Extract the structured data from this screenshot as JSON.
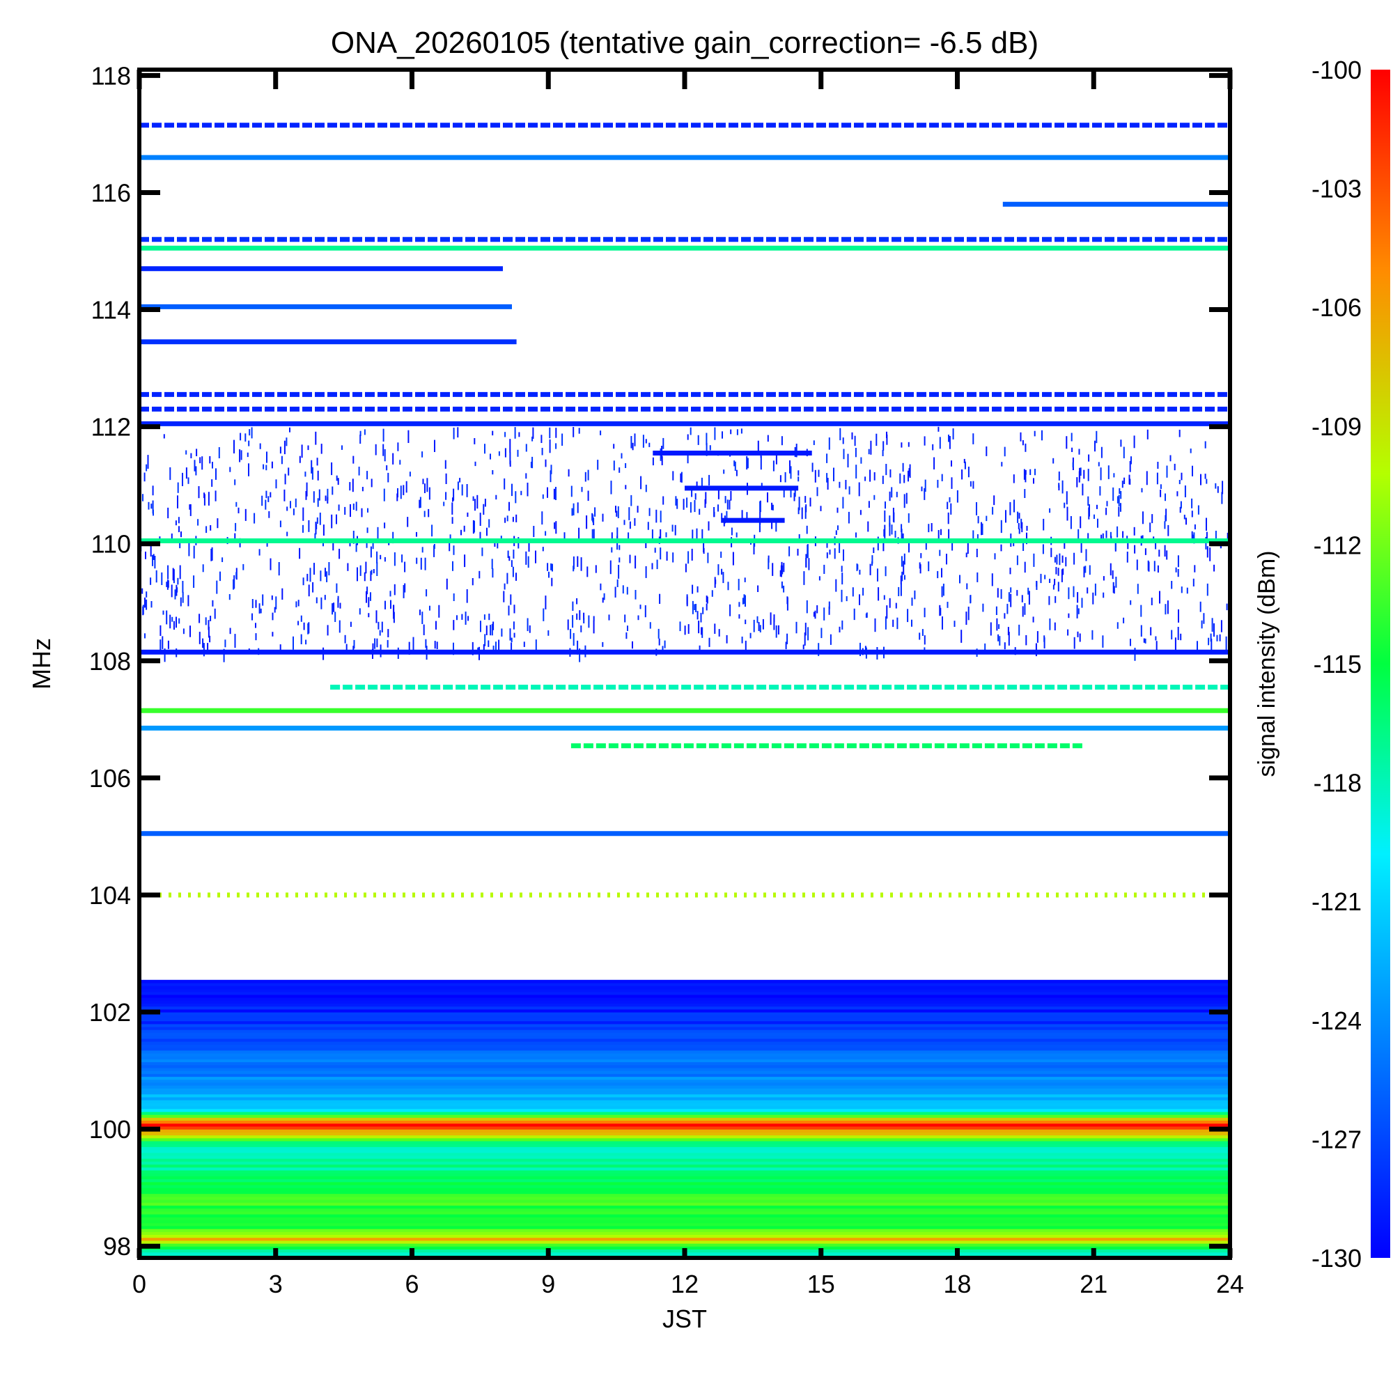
{
  "chart_data": {
    "type": "heatmap",
    "title": "ONA_20260105 (tentative gain_correction= -6.5 dB)",
    "xlabel": "JST",
    "ylabel": "MHz",
    "xlim": [
      0,
      24
    ],
    "ylim": [
      97.8,
      118.1
    ],
    "x_ticks": [
      "0",
      "3",
      "6",
      "9",
      "12",
      "15",
      "18",
      "21",
      "24"
    ],
    "x_tick_values": [
      0,
      3,
      6,
      9,
      12,
      15,
      18,
      21,
      24
    ],
    "y_ticks": [
      "98",
      "100",
      "102",
      "104",
      "106",
      "108",
      "110",
      "112",
      "114",
      "116",
      "118"
    ],
    "y_tick_values": [
      98,
      100,
      102,
      104,
      106,
      108,
      110,
      112,
      114,
      116,
      118
    ],
    "colorbar": {
      "label": "signal intensity (dBm)",
      "min": -130,
      "max": -100,
      "ticks": [
        "-100",
        "-103",
        "-106",
        "-109",
        "-112",
        "-115",
        "-118",
        "-121",
        "-124",
        "-127",
        "-130"
      ],
      "tick_values": [
        -100,
        -103,
        -106,
        -109,
        -112,
        -115,
        -118,
        -121,
        -124,
        -127,
        -130
      ]
    },
    "continuous_lines": [
      {
        "freq": 116.6,
        "intensity": -124.5,
        "x": [
          0,
          24
        ]
      },
      {
        "freq": 115.05,
        "intensity": -117.0,
        "x": [
          0,
          24
        ]
      },
      {
        "freq": 115.2,
        "intensity": -128.0,
        "x": [
          0,
          24
        ],
        "dashed": true
      },
      {
        "freq": 114.7,
        "intensity": -128.5,
        "x": [
          0,
          8.0
        ]
      },
      {
        "freq": 114.05,
        "intensity": -126.0,
        "x": [
          0,
          8.2
        ]
      },
      {
        "freq": 113.45,
        "intensity": -128.0,
        "x": [
          0,
          8.3
        ]
      },
      {
        "freq": 112.55,
        "intensity": -128.5,
        "x": [
          0,
          24
        ],
        "dashed": true
      },
      {
        "freq": 112.3,
        "intensity": -128.5,
        "x": [
          0,
          24
        ],
        "dashed": true
      },
      {
        "freq": 112.05,
        "intensity": -128.5,
        "x": [
          0,
          24
        ]
      },
      {
        "freq": 110.05,
        "intensity": -117.0,
        "x": [
          0,
          24
        ]
      },
      {
        "freq": 108.15,
        "intensity": -129.0,
        "x": [
          0,
          24
        ]
      },
      {
        "freq": 107.55,
        "intensity": -118.0,
        "x": [
          4.2,
          24
        ],
        "dashed": true
      },
      {
        "freq": 107.15,
        "intensity": -113.5,
        "x": [
          0,
          24
        ]
      },
      {
        "freq": 106.85,
        "intensity": -123.5,
        "x": [
          0,
          24
        ]
      },
      {
        "freq": 106.55,
        "intensity": -116.0,
        "x": [
          9.5,
          20.8
        ],
        "dashed": true
      },
      {
        "freq": 105.05,
        "intensity": -126.0,
        "x": [
          0,
          24
        ]
      },
      {
        "freq": 104.0,
        "intensity": -110.0,
        "x": [
          0,
          24
        ],
        "dotted": true
      },
      {
        "freq": 117.15,
        "intensity": -128.5,
        "x": [
          0,
          24
        ],
        "dashed": true
      },
      {
        "freq": 115.8,
        "intensity": -126.0,
        "x": [
          19.0,
          24
        ]
      },
      {
        "freq": 111.55,
        "intensity": -129.0,
        "x": [
          11.3,
          14.8
        ]
      },
      {
        "freq": 110.95,
        "intensity": -129.0,
        "x": [
          12.0,
          14.5
        ]
      },
      {
        "freq": 110.4,
        "intensity": -129.0,
        "x": [
          12.8,
          14.2
        ]
      }
    ],
    "low_band": {
      "freq_range": [
        97.8,
        102.5
      ],
      "profile": [
        {
          "freq": 97.9,
          "intensity": -117.5
        },
        {
          "freq": 98.1,
          "intensity": -107.0
        },
        {
          "freq": 98.3,
          "intensity": -115.0
        },
        {
          "freq": 98.6,
          "intensity": -114.5
        },
        {
          "freq": 98.8,
          "intensity": -113.0
        },
        {
          "freq": 99.2,
          "intensity": -117.0
        },
        {
          "freq": 99.7,
          "intensity": -118.0
        },
        {
          "freq": 100.05,
          "intensity": -101.0
        },
        {
          "freq": 100.3,
          "intensity": -120.5
        },
        {
          "freq": 100.8,
          "intensity": -124.0
        },
        {
          "freq": 101.3,
          "intensity": -125.5
        },
        {
          "freq": 101.8,
          "intensity": -128.0
        },
        {
          "freq": 102.2,
          "intensity": -129.5
        }
      ]
    },
    "noise_region": {
      "freq_range": [
        108.2,
        112.0
      ],
      "intensity": -129.5
    }
  }
}
